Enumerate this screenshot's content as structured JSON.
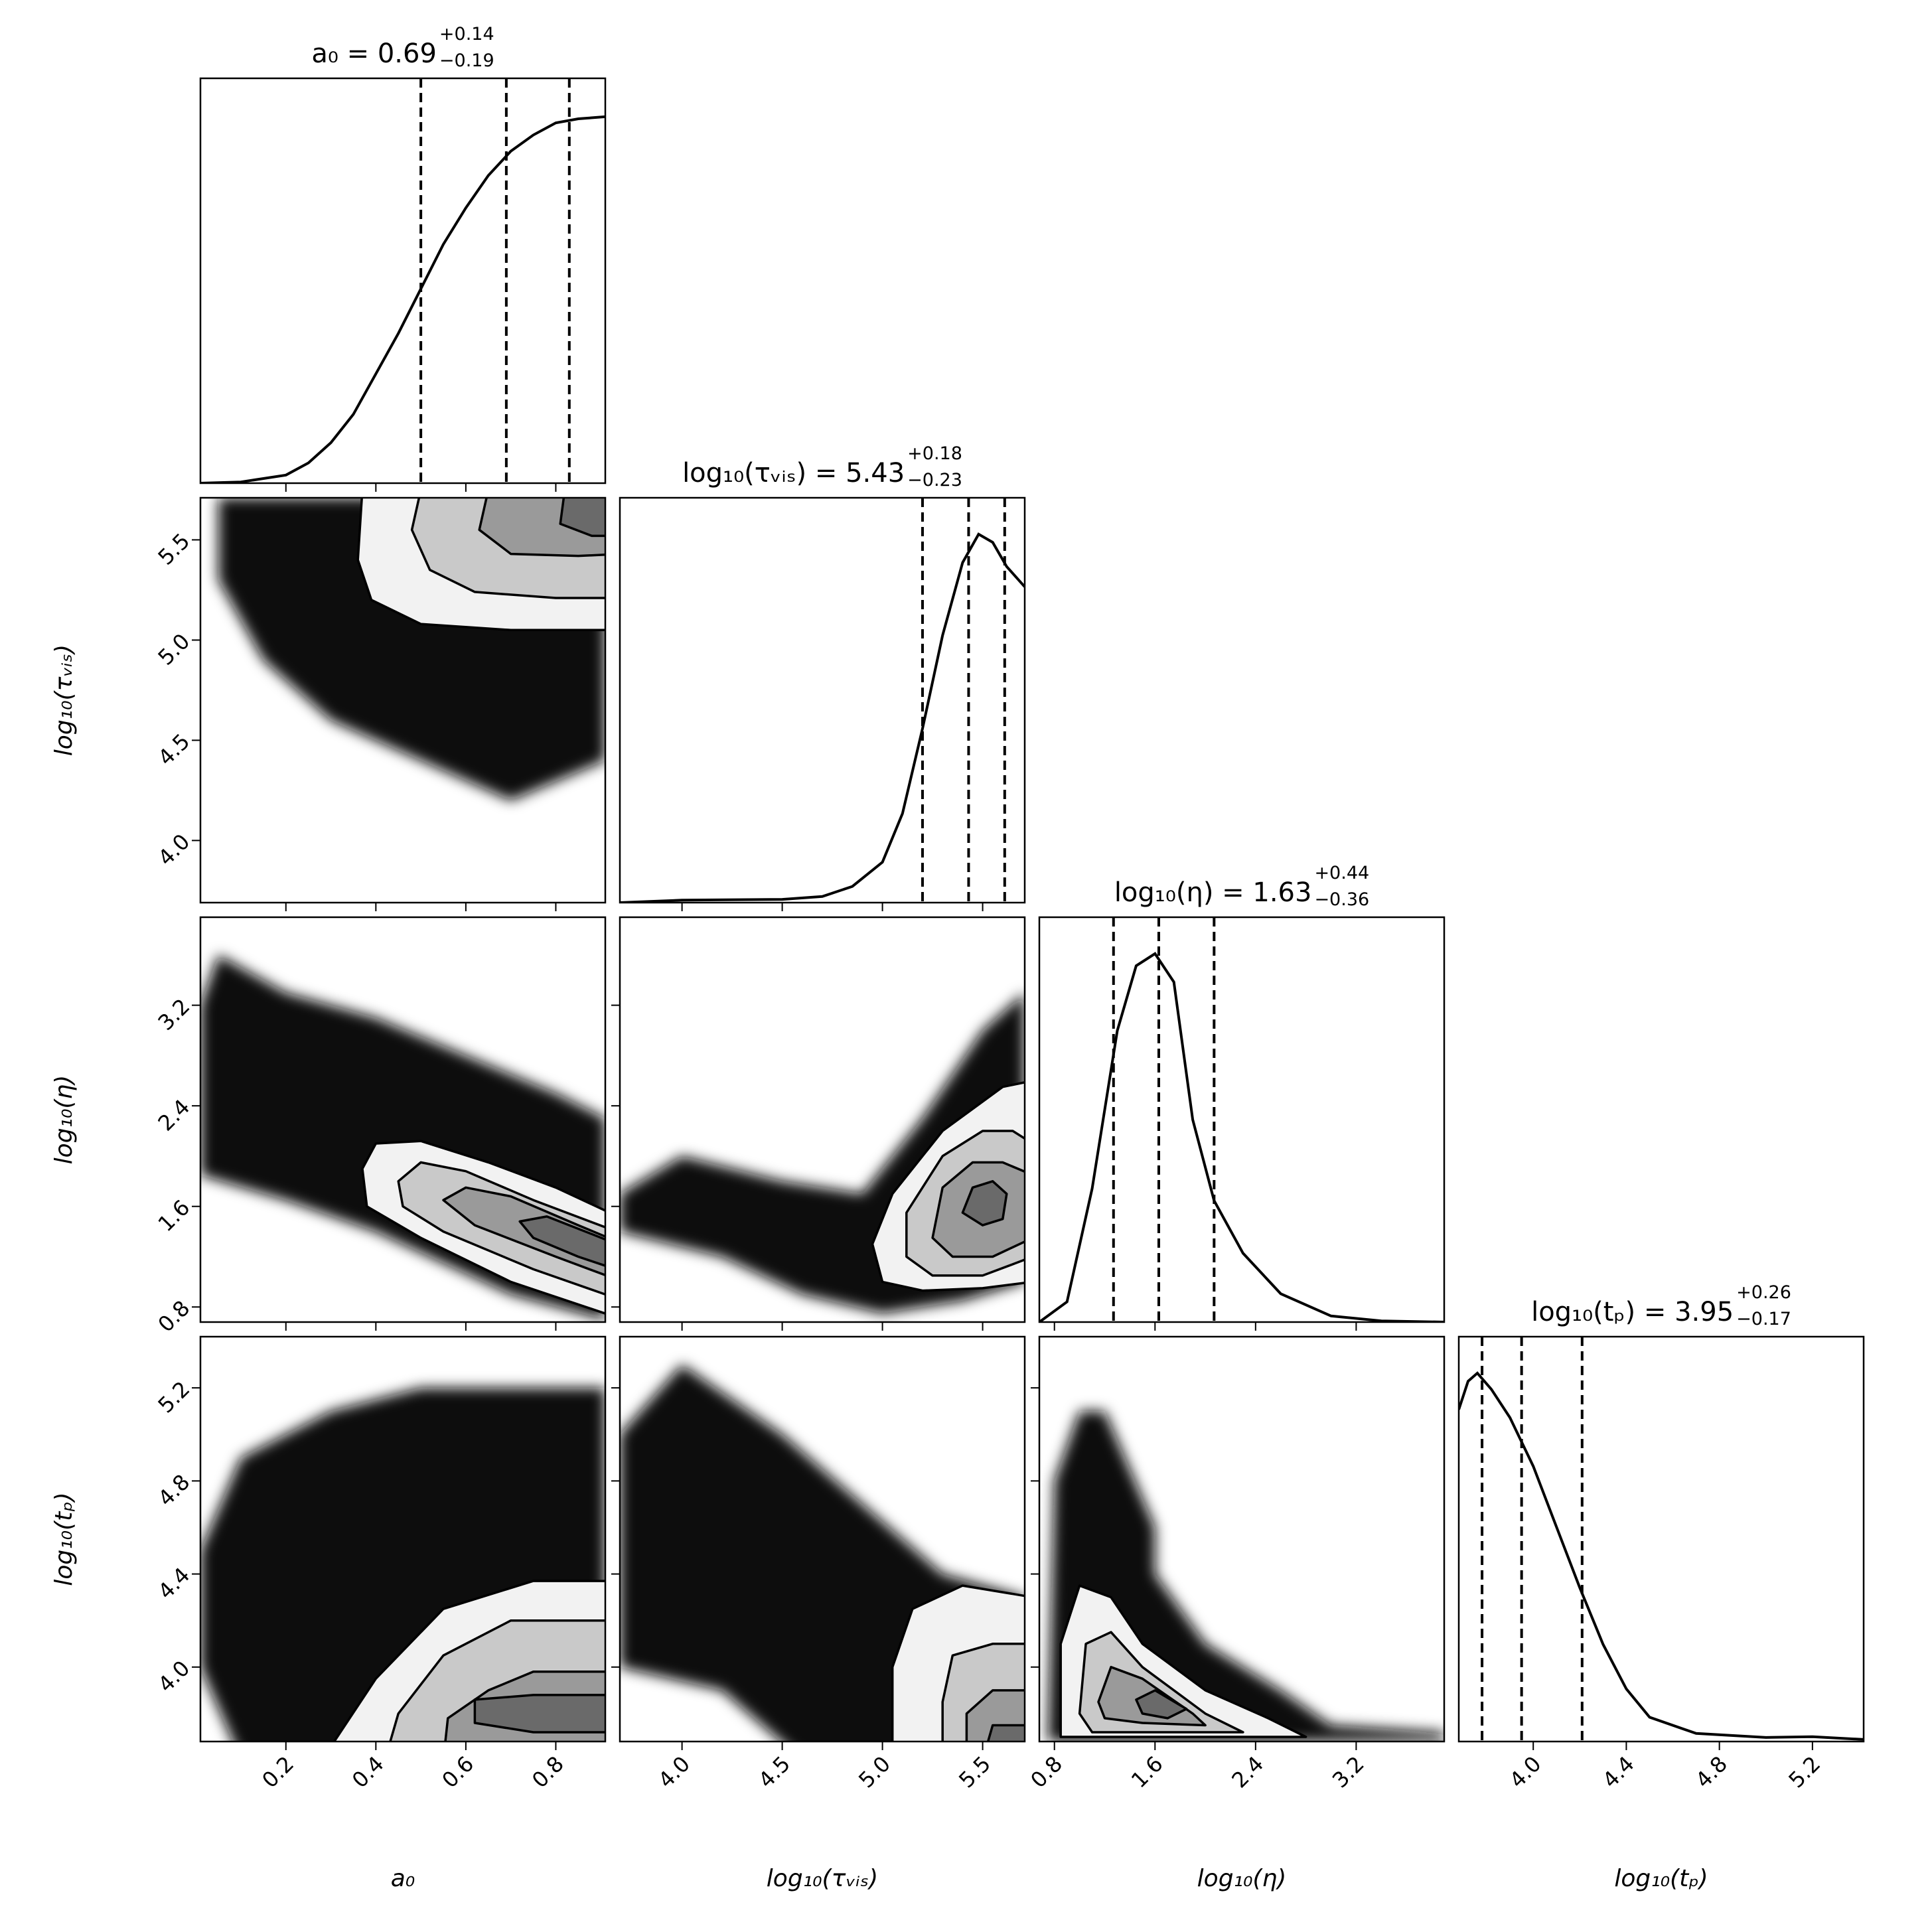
{
  "chart_data": [
    {
      "type": "line",
      "title": "a₀ = 0.69",
      "upper": "+0.14",
      "lower": "−0.19",
      "color": "#000000",
      "xlim": [
        0.01,
        0.91
      ],
      "ylim": [
        0,
        1
      ],
      "xticks": [
        0.2,
        0.4,
        0.6,
        0.8
      ],
      "x": [
        0.01,
        0.1,
        0.2,
        0.25,
        0.3,
        0.35,
        0.4,
        0.45,
        0.5,
        0.55,
        0.6,
        0.65,
        0.7,
        0.75,
        0.8,
        0.85,
        0.91
      ],
      "values": [
        0,
        0.003,
        0.02,
        0.05,
        0.1,
        0.17,
        0.27,
        0.37,
        0.48,
        0.59,
        0.68,
        0.76,
        0.82,
        0.86,
        0.89,
        0.9,
        0.905
      ],
      "quantiles": [
        0.5,
        0.69,
        0.83
      ]
    },
    {
      "type": "contour",
      "ylabel": "log₁₀(τᵥᵢₛ)",
      "xlim": [
        0.01,
        0.91
      ],
      "ylim": [
        3.69,
        5.71
      ],
      "xticks": [
        0.2,
        0.4,
        0.6,
        0.8
      ],
      "yticks": [
        {
          "value": 4,
          "label": "4.0"
        },
        4.5,
        {
          "value": 5,
          "label": "5.0"
        },
        5.5
      ],
      "cloud": {
        "color": "#111111",
        "x": [
          0.05,
          0.91,
          0.91,
          0.7,
          0.5,
          0.3,
          0.15,
          0.05
        ],
        "y": [
          5.71,
          5.71,
          4.4,
          4.2,
          4.4,
          4.6,
          4.9,
          5.3
        ]
      },
      "contours": [
        {
          "color": "#f2f2f2",
          "x": [
            0.37,
            0.36,
            0.39,
            0.5,
            0.7,
            0.95,
            0.95
          ],
          "y": [
            5.75,
            5.4,
            5.2,
            5.08,
            5.05,
            5.05,
            5.75
          ]
        },
        {
          "color": "#c9c9c9",
          "x": [
            0.5,
            0.48,
            0.52,
            0.62,
            0.8,
            0.95,
            0.95
          ],
          "y": [
            5.75,
            5.55,
            5.35,
            5.24,
            5.21,
            5.21,
            5.75
          ]
        },
        {
          "color": "#9a9a9a",
          "x": [
            0.65,
            0.63,
            0.7,
            0.85,
            0.95,
            0.95
          ],
          "y": [
            5.75,
            5.55,
            5.43,
            5.42,
            5.43,
            5.75
          ]
        },
        {
          "color": "#6a6a6a",
          "x": [
            0.82,
            0.81,
            0.88,
            0.95,
            0.95
          ],
          "y": [
            5.75,
            5.58,
            5.52,
            5.52,
            5.75
          ]
        }
      ]
    },
    {
      "type": "line",
      "title": "log₁₀(τᵥᵢₛ) = 5.43",
      "upper": "+0.18",
      "lower": "−0.23",
      "color": "#000000",
      "xlim": [
        3.69,
        5.71
      ],
      "ylim": [
        0,
        1
      ],
      "xticks": [
        {
          "value": 4,
          "label": "4.0"
        },
        4.5,
        {
          "value": 5,
          "label": "5.0"
        },
        5.5
      ],
      "x": [
        3.69,
        4.0,
        4.5,
        4.7,
        4.85,
        5.0,
        5.1,
        5.2,
        5.3,
        5.4,
        5.48,
        5.55,
        5.62,
        5.71
      ],
      "values": [
        0,
        0.006,
        0.008,
        0.015,
        0.04,
        0.1,
        0.22,
        0.43,
        0.66,
        0.84,
        0.91,
        0.89,
        0.83,
        0.78
      ],
      "quantiles": [
        5.2,
        5.43,
        5.61
      ]
    },
    {
      "type": "contour",
      "ylabel": "log₁₀(η)",
      "xlim": [
        0.01,
        0.91
      ],
      "ylim": [
        0.68,
        3.9
      ],
      "xticks": [
        0.2,
        0.4,
        0.6,
        0.8
      ],
      "yticks": [
        0.8,
        1.6,
        2.4,
        3.2
      ],
      "cloud": {
        "color": "#111111",
        "x": [
          0.01,
          0.05,
          0.2,
          0.4,
          0.6,
          0.8,
          0.91,
          0.91,
          0.7,
          0.4,
          0.2,
          0.01
        ],
        "y": [
          3.2,
          3.6,
          3.3,
          3.1,
          2.8,
          2.5,
          2.3,
          0.7,
          0.9,
          1.4,
          1.65,
          1.85
        ]
      },
      "contours": [
        {
          "color": "#f2f2f2",
          "x": [
            0.37,
            0.4,
            0.5,
            0.65,
            0.8,
            0.95,
            0.95,
            0.7,
            0.5,
            0.38
          ],
          "y": [
            1.9,
            2.1,
            2.12,
            1.95,
            1.75,
            1.5,
            0.7,
            1.0,
            1.35,
            1.6
          ]
        },
        {
          "color": "#c9c9c9",
          "x": [
            0.45,
            0.5,
            0.6,
            0.75,
            0.95,
            0.95,
            0.75,
            0.55,
            0.46
          ],
          "y": [
            1.8,
            1.95,
            1.88,
            1.65,
            1.38,
            0.85,
            1.1,
            1.4,
            1.6
          ]
        },
        {
          "color": "#9a9a9a",
          "x": [
            0.55,
            0.6,
            0.7,
            0.85,
            0.95,
            0.95,
            0.8,
            0.62
          ],
          "y": [
            1.65,
            1.75,
            1.68,
            1.45,
            1.3,
            1.0,
            1.2,
            1.45
          ]
        },
        {
          "color": "#6a6a6a",
          "x": [
            0.72,
            0.78,
            0.88,
            0.95,
            0.95,
            0.85,
            0.75
          ],
          "y": [
            1.48,
            1.52,
            1.38,
            1.28,
            1.08,
            1.2,
            1.35
          ]
        }
      ]
    },
    {
      "type": "contour",
      "xlim": [
        3.69,
        5.71
      ],
      "ylim": [
        0.68,
        3.9
      ],
      "xticks": [
        {
          "value": 4,
          "label": "4.0"
        },
        4.5,
        {
          "value": 5,
          "label": "5.0"
        },
        5.5
      ],
      "yticks": [
        0.8,
        1.6,
        2.4,
        3.2
      ],
      "cloud": {
        "color": "#111111",
        "x": [
          3.69,
          4.0,
          4.5,
          4.9,
          5.2,
          5.5,
          5.71,
          5.71,
          5.4,
          5.0,
          4.6,
          4.2,
          3.69
        ],
        "y": [
          1.7,
          2.0,
          1.8,
          1.7,
          2.3,
          3.0,
          3.3,
          1.0,
          0.85,
          0.75,
          0.9,
          1.2,
          1.4
        ]
      },
      "contours": [
        {
          "color": "#f2f2f2",
          "x": [
            5.0,
            4.95,
            5.05,
            5.3,
            5.6,
            5.75,
            5.75,
            5.5,
            5.2
          ],
          "y": [
            1.0,
            1.3,
            1.7,
            2.2,
            2.55,
            2.6,
            1.0,
            0.95,
            0.93
          ]
        },
        {
          "color": "#c9c9c9",
          "x": [
            5.12,
            5.12,
            5.3,
            5.5,
            5.65,
            5.75,
            5.75,
            5.5,
            5.25
          ],
          "y": [
            1.2,
            1.55,
            2.0,
            2.2,
            2.2,
            2.1,
            1.2,
            1.05,
            1.05
          ]
        },
        {
          "color": "#9a9a9a",
          "x": [
            5.25,
            5.3,
            5.45,
            5.6,
            5.75,
            5.75,
            5.55,
            5.35
          ],
          "y": [
            1.35,
            1.75,
            1.95,
            1.95,
            1.85,
            1.35,
            1.2,
            1.2
          ]
        },
        {
          "color": "#6a6a6a",
          "x": [
            5.4,
            5.45,
            5.55,
            5.62,
            5.6,
            5.5
          ],
          "y": [
            1.55,
            1.75,
            1.8,
            1.7,
            1.5,
            1.45
          ]
        }
      ]
    },
    {
      "type": "line",
      "title": "log₁₀(η) = 1.63",
      "upper": "+0.44",
      "lower": "−0.36",
      "color": "#000000",
      "xlim": [
        0.68,
        3.9
      ],
      "ylim": [
        0,
        1
      ],
      "xticks": [
        0.8,
        1.6,
        2.4,
        3.2
      ],
      "x": [
        0.68,
        0.9,
        1.1,
        1.3,
        1.45,
        1.6,
        1.75,
        1.9,
        2.07,
        2.3,
        2.6,
        3.0,
        3.4,
        3.9
      ],
      "values": [
        0,
        0.05,
        0.33,
        0.72,
        0.88,
        0.91,
        0.84,
        0.5,
        0.3,
        0.17,
        0.07,
        0.015,
        0.003,
        0
      ],
      "quantiles": [
        1.27,
        1.63,
        2.07
      ]
    },
    {
      "type": "contour",
      "ylabel": "log₁₀(tₚ)",
      "xlabel": "a₀",
      "xlim": [
        0.01,
        0.91
      ],
      "ylim": [
        3.68,
        5.42
      ],
      "xticks": [
        0.2,
        0.4,
        0.6,
        0.8
      ],
      "yticks": [
        {
          "value": 4,
          "label": "4.0"
        },
        4.4,
        4.8,
        5.2
      ],
      "cloud": {
        "color": "#111111",
        "x": [
          0.01,
          0.1,
          0.3,
          0.5,
          0.7,
          0.91,
          0.91,
          0.1,
          0.01
        ],
        "y": [
          4.5,
          4.9,
          5.1,
          5.2,
          5.2,
          5.2,
          3.6,
          3.6,
          4.0
        ]
      },
      "contours": [
        {
          "color": "#f2f2f2",
          "x": [
            0.28,
            0.4,
            0.55,
            0.75,
            0.95,
            0.95
          ],
          "y": [
            3.6,
            3.95,
            4.25,
            4.37,
            4.37,
            3.6
          ]
        },
        {
          "color": "#c9c9c9",
          "x": [
            0.42,
            0.45,
            0.55,
            0.7,
            0.95,
            0.95
          ],
          "y": [
            3.6,
            3.8,
            4.05,
            4.2,
            4.2,
            3.6
          ]
        },
        {
          "color": "#9a9a9a",
          "x": [
            0.55,
            0.56,
            0.65,
            0.75,
            0.95,
            0.95
          ],
          "y": [
            3.6,
            3.78,
            3.9,
            3.98,
            3.98,
            3.6
          ]
        },
        {
          "color": "#6a6a6a",
          "x": [
            0.62,
            0.75,
            0.95,
            0.95,
            0.75,
            0.62
          ],
          "y": [
            3.86,
            3.88,
            3.88,
            3.72,
            3.72,
            3.76
          ]
        }
      ]
    },
    {
      "type": "contour",
      "xlabel": "log₁₀(τᵥᵢₛ)",
      "xlim": [
        3.69,
        5.71
      ],
      "ylim": [
        3.68,
        5.42
      ],
      "xticks": [
        {
          "value": 4,
          "label": "4.0"
        },
        4.5,
        {
          "value": 5,
          "label": "5.0"
        },
        5.5
      ],
      "yticks": [
        {
          "value": 4,
          "label": "4.0"
        },
        4.4,
        4.8,
        5.2
      ],
      "cloud": {
        "color": "#111111",
        "x": [
          3.69,
          4.0,
          4.5,
          4.9,
          5.3,
          5.71,
          5.71,
          4.6,
          4.2,
          3.69
        ],
        "y": [
          5.0,
          5.3,
          5.0,
          4.7,
          4.4,
          4.3,
          3.6,
          3.6,
          3.9,
          4.0
        ]
      },
      "contours": [
        {
          "color": "#f2f2f2",
          "x": [
            5.05,
            5.05,
            5.15,
            5.4,
            5.75,
            5.75
          ],
          "y": [
            3.6,
            4.0,
            4.25,
            4.35,
            4.3,
            3.6
          ]
        },
        {
          "color": "#c9c9c9",
          "x": [
            5.3,
            5.3,
            5.35,
            5.55,
            5.75,
            5.75
          ],
          "y": [
            3.6,
            3.85,
            4.05,
            4.1,
            4.1,
            3.6
          ]
        },
        {
          "color": "#9a9a9a",
          "x": [
            5.42,
            5.42,
            5.55,
            5.75,
            5.75
          ],
          "y": [
            3.6,
            3.8,
            3.9,
            3.9,
            3.6
          ]
        },
        {
          "color": "#6a6a6a",
          "x": [
            5.5,
            5.55,
            5.75,
            5.75
          ],
          "y": [
            3.6,
            3.75,
            3.75,
            3.6
          ]
        }
      ]
    },
    {
      "type": "contour",
      "xlabel": "log₁₀(η)",
      "xlim": [
        0.68,
        3.9
      ],
      "ylim": [
        3.68,
        5.42
      ],
      "xticks": [
        0.8,
        1.6,
        2.4,
        3.2
      ],
      "yticks": [
        {
          "value": 4,
          "label": "4.0"
        },
        4.4,
        4.8,
        5.2
      ],
      "cloud": {
        "color": "#111111",
        "x": [
          0.75,
          0.8,
          1.0,
          1.2,
          1.6,
          1.6,
          2.0,
          2.6,
          3.0,
          3.9,
          3.9,
          0.75
        ],
        "y": [
          3.7,
          4.8,
          5.1,
          5.1,
          4.6,
          4.4,
          4.1,
          3.9,
          3.75,
          3.72,
          3.68,
          3.68
        ]
      },
      "contours": [
        {
          "color": "#f2f2f2",
          "x": [
            0.85,
            0.85,
            1.0,
            1.25,
            1.5,
            2.0,
            2.5,
            2.8
          ],
          "y": [
            3.7,
            4.1,
            4.35,
            4.3,
            4.1,
            3.9,
            3.78,
            3.7
          ]
        },
        {
          "color": "#c9c9c9",
          "x": [
            1.0,
            1.05,
            1.25,
            1.5,
            2.0,
            2.3,
            1.5,
            1.1
          ],
          "y": [
            3.8,
            4.1,
            4.15,
            4.0,
            3.8,
            3.72,
            3.72,
            3.72
          ]
        },
        {
          "color": "#9a9a9a",
          "x": [
            1.15,
            1.25,
            1.5,
            1.9,
            2.0,
            1.5,
            1.2
          ],
          "y": [
            3.85,
            4.0,
            3.95,
            3.8,
            3.75,
            3.76,
            3.78
          ]
        },
        {
          "color": "#6a6a6a",
          "x": [
            1.45,
            1.6,
            1.85,
            1.7,
            1.5
          ],
          "y": [
            3.86,
            3.9,
            3.82,
            3.78,
            3.8
          ]
        }
      ]
    },
    {
      "type": "line",
      "title": "log₁₀(tₚ) = 3.95",
      "upper": "+0.26",
      "lower": "−0.17",
      "color": "#000000",
      "xlabel": "log₁₀(tₚ)",
      "xlim": [
        3.68,
        5.42
      ],
      "ylim": [
        0,
        1
      ],
      "xticks": [
        {
          "value": 4,
          "label": "4.0"
        },
        4.4,
        4.8,
        5.2
      ],
      "x": [
        3.68,
        3.72,
        3.76,
        3.82,
        3.9,
        4.0,
        4.1,
        4.2,
        4.3,
        4.4,
        4.5,
        4.7,
        5.0,
        5.2,
        5.42
      ],
      "values": [
        0.82,
        0.89,
        0.91,
        0.87,
        0.8,
        0.68,
        0.53,
        0.38,
        0.24,
        0.13,
        0.06,
        0.02,
        0.01,
        0.012,
        0.005
      ],
      "quantiles": [
        3.78,
        3.95,
        4.21
      ]
    }
  ]
}
